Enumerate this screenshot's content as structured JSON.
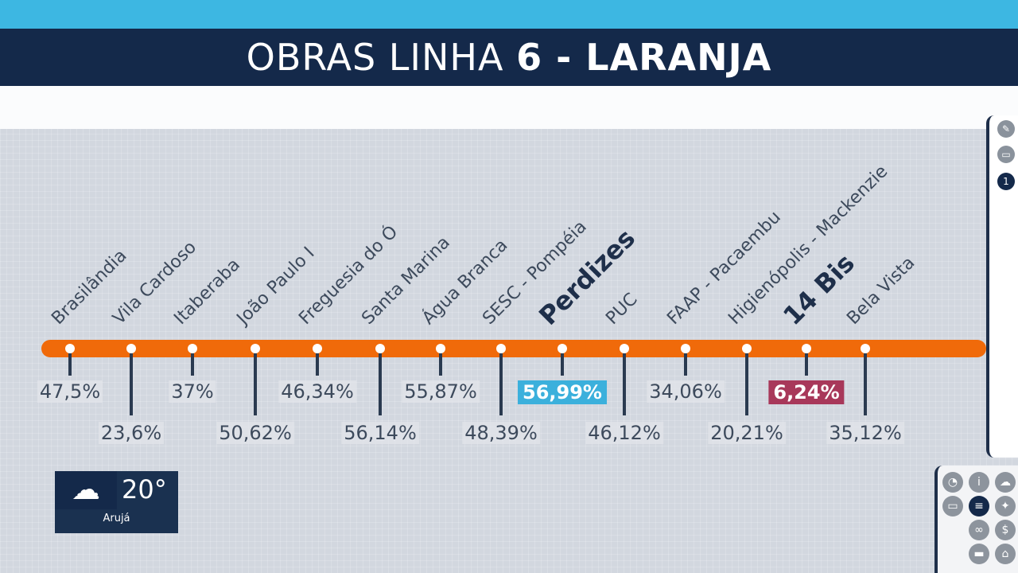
{
  "title": {
    "prefix": "OBRAS LINHA ",
    "bold": "6 - LARANJA"
  },
  "colors": {
    "line": "#f06a0a",
    "title_bg": "#14294a",
    "highlight_blue": "#3bb0dc",
    "highlight_red": "#a8385a"
  },
  "stations": [
    {
      "name": "Brasilândia",
      "progress": "47,5%"
    },
    {
      "name": "Vila Cardoso",
      "progress": "23,6%"
    },
    {
      "name": "Itaberaba",
      "progress": "37%"
    },
    {
      "name": "João Paulo I",
      "progress": "50,62%"
    },
    {
      "name": "Freguesia do Ó",
      "progress": "46,34%"
    },
    {
      "name": "Santa Marina",
      "progress": "56,14%"
    },
    {
      "name": "Água Branca",
      "progress": "55,87%"
    },
    {
      "name": "SESC - Pompéia",
      "progress": "48,39%"
    },
    {
      "name": "Perdizes",
      "progress": "56,99%",
      "highlight": "blue"
    },
    {
      "name": "PUC",
      "progress": "46,12%"
    },
    {
      "name": "FAAP - Pacaembu",
      "progress": "34,06%"
    },
    {
      "name": "Higienópolis - Mackenzie",
      "progress": "20,21%"
    },
    {
      "name": "14 Bis",
      "progress": "6,24%",
      "highlight": "red"
    },
    {
      "name": "Bela Vista",
      "progress": "35,12%"
    }
  ],
  "weather": {
    "icon": "cloud-icon",
    "temperature": "20°",
    "city": "Arujá"
  },
  "side_icons": [
    "pencil-icon",
    "screen-icon",
    "info-icon"
  ],
  "grid_icons": [
    "map-icon",
    "person-icon",
    "cloud-icon",
    "traffic-icon",
    "menu-icon",
    "running-icon",
    "link-icon",
    "dollar-icon",
    "chat-icon",
    "home-icon"
  ]
}
